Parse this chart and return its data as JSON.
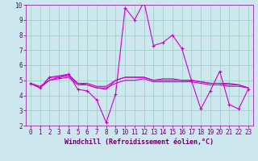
{
  "title": "",
  "xlabel": "Windchill (Refroidissement éolien,°C)",
  "ylabel": "",
  "bg_color": "#cce8ee",
  "line_color": "#cc00cc",
  "grid_color": "#99ccbb",
  "xlim": [
    -0.5,
    23.5
  ],
  "ylim": [
    2,
    10
  ],
  "yticks": [
    2,
    3,
    4,
    5,
    6,
    7,
    8,
    9,
    10
  ],
  "xticks": [
    0,
    1,
    2,
    3,
    4,
    5,
    6,
    7,
    8,
    9,
    10,
    11,
    12,
    13,
    14,
    15,
    16,
    17,
    18,
    19,
    20,
    21,
    22,
    23
  ],
  "series": [
    [
      4.8,
      4.5,
      5.2,
      5.2,
      5.4,
      4.4,
      4.3,
      3.7,
      2.2,
      4.1,
      9.8,
      9.0,
      10.2,
      7.3,
      7.5,
      8.0,
      7.1,
      5.0,
      3.1,
      4.3,
      5.6,
      3.4,
      3.1,
      4.4
    ],
    [
      4.8,
      4.5,
      5.0,
      5.2,
      5.3,
      4.8,
      4.8,
      4.6,
      4.6,
      5.0,
      5.2,
      5.2,
      5.2,
      5.0,
      5.0,
      5.0,
      5.0,
      5.0,
      4.9,
      4.8,
      4.8,
      4.8,
      4.7,
      4.5
    ],
    [
      4.8,
      4.6,
      5.0,
      5.1,
      5.2,
      4.7,
      4.7,
      4.5,
      4.5,
      4.8,
      5.0,
      5.0,
      5.1,
      4.9,
      4.9,
      4.9,
      4.9,
      4.9,
      4.8,
      4.7,
      4.7,
      4.6,
      4.6,
      4.5
    ],
    [
      4.8,
      4.5,
      5.2,
      5.3,
      5.4,
      4.8,
      4.7,
      4.5,
      4.4,
      5.0,
      5.2,
      5.2,
      5.2,
      5.0,
      5.1,
      5.1,
      5.0,
      5.0,
      4.9,
      4.8,
      4.8,
      4.7,
      4.7,
      4.5
    ]
  ],
  "marker": "+",
  "markersize": 3,
  "linewidth": 0.8,
  "tick_fontsize": 5.5,
  "xlabel_fontsize": 6.0
}
